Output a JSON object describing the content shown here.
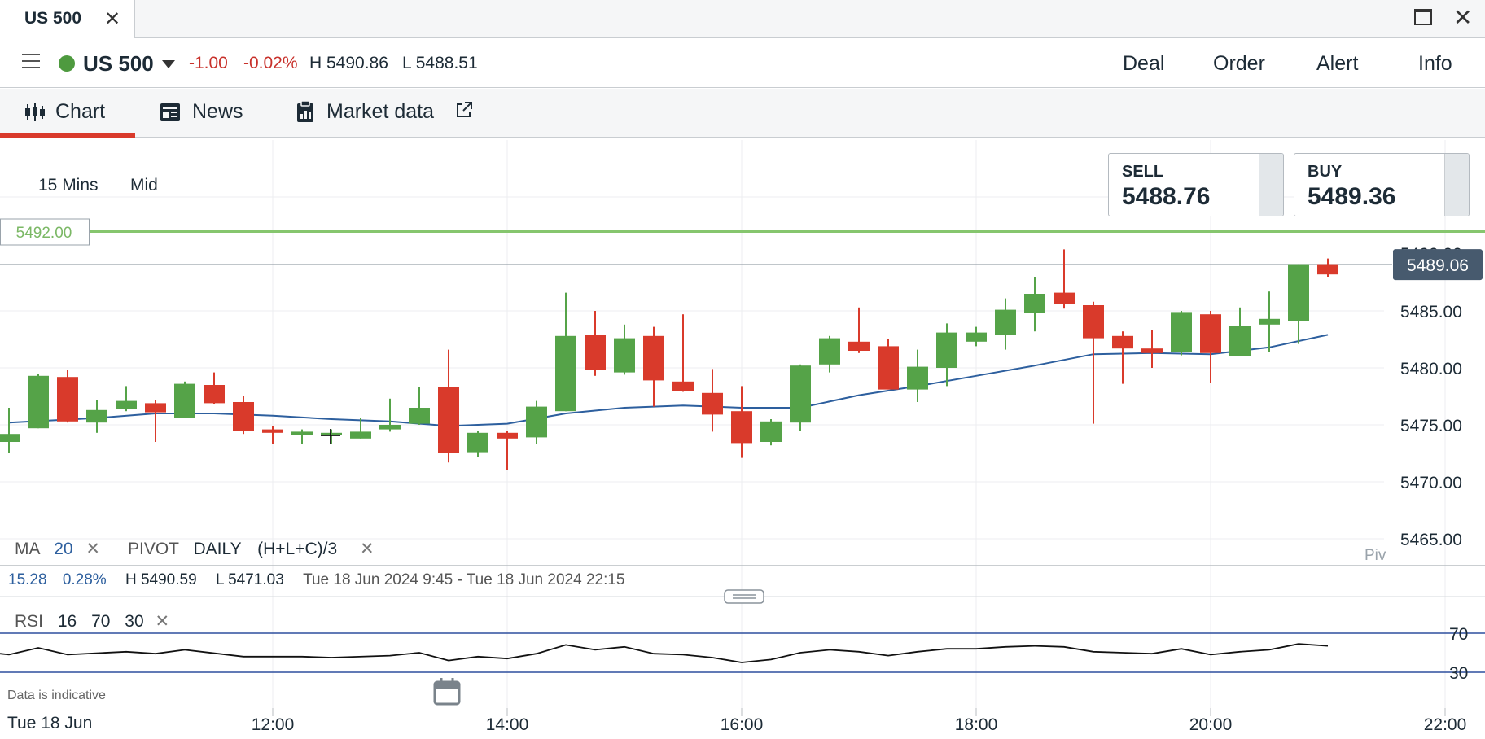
{
  "window": {
    "tab_title": "US 500",
    "close_glyph": "✕",
    "close_window_glyph": "✕",
    "maximize_icon": "maximize-icon"
  },
  "instrument": {
    "name": "US 500",
    "change": "-1.00",
    "change_pct": "-0.02%",
    "high": "H 5490.86",
    "low": "L 5488.51",
    "status_color": "#4e9a3f"
  },
  "top_nav": [
    "Deal",
    "Order",
    "Alert",
    "Info"
  ],
  "tabs": [
    {
      "label": "Chart",
      "icon": "candlestick-icon",
      "active": true
    },
    {
      "label": "News",
      "icon": "news-icon",
      "active": false
    },
    {
      "label": "Market data",
      "icon": "clipboard-chart-icon",
      "active": false
    }
  ],
  "controls": {
    "interval": "15 Mins",
    "price_type": "Mid"
  },
  "sell": {
    "label": "SELL",
    "price": "5488.76"
  },
  "buy": {
    "label": "BUY",
    "price": "5489.36"
  },
  "pivot_line_label": "5492.00",
  "current_price_label": "5489.06",
  "partial_axis_label": "5490.00",
  "piv_label": "Piv",
  "indicators": {
    "ma_label": "MA",
    "ma_period": "20",
    "pivot_label": "PIVOT",
    "pivot_period": "DAILY",
    "pivot_formula": "(H+L+C)/3",
    "remove_glyph": "✕"
  },
  "stats": {
    "change": "15.28",
    "change_pct": "0.28%",
    "high": "H 5490.59",
    "low": "L 5471.03",
    "range": "Tue 18 Jun 2024 9:45 - Tue 18 Jun 2024 22:15"
  },
  "rsi": {
    "label": "RSI",
    "period": "16",
    "upper": "70",
    "lower": "30"
  },
  "footer": {
    "indicative": "Data is indicative",
    "date": "Tue 18 Jun"
  },
  "colors": {
    "up": "#55a348",
    "down": "#d93a2b",
    "ma": "#2d5f9e",
    "pivot": "#86c66e",
    "rsi_band": "#2d4f9e",
    "price_tag": "#475a6e"
  },
  "chart_data": {
    "type": "candlestick",
    "title": "",
    "price_ticks": [
      5465,
      5470,
      5475,
      5480,
      5485
    ],
    "price_range": [
      5462,
      5493
    ],
    "time_ticks": [
      "12:00",
      "14:00",
      "16:00",
      "18:00",
      "20:00",
      "22:00"
    ],
    "time_tick_hours": [
      12,
      14,
      16,
      18,
      20,
      22
    ],
    "pivot": 5492.0,
    "current_price": 5489.06,
    "candles": [
      {
        "t": 9.75,
        "o": 5473.5,
        "h": 5476.5,
        "l": 5472.5,
        "c": 5474.2
      },
      {
        "t": 10.0,
        "o": 5474.7,
        "h": 5479.5,
        "l": 5474.7,
        "c": 5479.3
      },
      {
        "t": 10.25,
        "o": 5479.2,
        "h": 5479.8,
        "l": 5475.2,
        "c": 5475.3
      },
      {
        "t": 10.5,
        "o": 5475.2,
        "h": 5477.2,
        "l": 5474.3,
        "c": 5476.3
      },
      {
        "t": 10.75,
        "o": 5476.4,
        "h": 5478.4,
        "l": 5476.2,
        "c": 5477.1
      },
      {
        "t": 11.0,
        "o": 5476.9,
        "h": 5477.2,
        "l": 5473.5,
        "c": 5476.1
      },
      {
        "t": 11.25,
        "o": 5475.6,
        "h": 5478.8,
        "l": 5475.6,
        "c": 5478.6
      },
      {
        "t": 11.5,
        "o": 5478.5,
        "h": 5479.6,
        "l": 5476.8,
        "c": 5476.9
      },
      {
        "t": 11.75,
        "o": 5477.0,
        "h": 5477.5,
        "l": 5474.2,
        "c": 5474.5
      },
      {
        "t": 12.0,
        "o": 5474.6,
        "h": 5474.9,
        "l": 5473.3,
        "c": 5474.3
      },
      {
        "t": 12.25,
        "o": 5474.1,
        "h": 5474.6,
        "l": 5473.3,
        "c": 5474.4
      },
      {
        "t": 12.5,
        "o": 5474.3,
        "h": 5474.6,
        "l": 5473.3,
        "c": 5474.3
      },
      {
        "t": 12.75,
        "o": 5473.8,
        "h": 5475.6,
        "l": 5473.8,
        "c": 5474.4
      },
      {
        "t": 13.0,
        "o": 5474.6,
        "h": 5477.3,
        "l": 5474.4,
        "c": 5475.0
      },
      {
        "t": 13.25,
        "o": 5475.1,
        "h": 5478.3,
        "l": 5475.0,
        "c": 5476.5
      },
      {
        "t": 13.5,
        "o": 5478.3,
        "h": 5481.6,
        "l": 5471.7,
        "c": 5472.5
      },
      {
        "t": 13.75,
        "o": 5472.6,
        "h": 5474.5,
        "l": 5472.2,
        "c": 5474.3
      },
      {
        "t": 14.0,
        "o": 5474.3,
        "h": 5474.5,
        "l": 5471.0,
        "c": 5473.8
      },
      {
        "t": 14.25,
        "o": 5473.9,
        "h": 5477.1,
        "l": 5473.3,
        "c": 5476.6
      },
      {
        "t": 14.5,
        "o": 5476.2,
        "h": 5486.6,
        "l": 5476.2,
        "c": 5482.8
      },
      {
        "t": 14.75,
        "o": 5482.9,
        "h": 5485.0,
        "l": 5479.3,
        "c": 5479.8
      },
      {
        "t": 15.0,
        "o": 5479.6,
        "h": 5483.8,
        "l": 5479.4,
        "c": 5482.6
      },
      {
        "t": 15.25,
        "o": 5482.8,
        "h": 5483.6,
        "l": 5476.6,
        "c": 5478.9
      },
      {
        "t": 15.5,
        "o": 5478.8,
        "h": 5484.7,
        "l": 5477.9,
        "c": 5478.0
      },
      {
        "t": 15.75,
        "o": 5477.8,
        "h": 5479.9,
        "l": 5474.4,
        "c": 5475.9
      },
      {
        "t": 16.0,
        "o": 5476.2,
        "h": 5478.4,
        "l": 5472.1,
        "c": 5473.4
      },
      {
        "t": 16.25,
        "o": 5473.5,
        "h": 5475.5,
        "l": 5473.2,
        "c": 5475.3
      },
      {
        "t": 16.5,
        "o": 5475.2,
        "h": 5480.3,
        "l": 5474.5,
        "c": 5480.2
      },
      {
        "t": 16.75,
        "o": 5480.3,
        "h": 5482.8,
        "l": 5479.6,
        "c": 5482.6
      },
      {
        "t": 17.0,
        "o": 5482.3,
        "h": 5485.3,
        "l": 5481.3,
        "c": 5481.5
      },
      {
        "t": 17.25,
        "o": 5481.9,
        "h": 5482.5,
        "l": 5478.1,
        "c": 5478.1
      },
      {
        "t": 17.5,
        "o": 5478.1,
        "h": 5481.6,
        "l": 5477.0,
        "c": 5480.1
      },
      {
        "t": 17.75,
        "o": 5480.0,
        "h": 5483.9,
        "l": 5478.4,
        "c": 5483.1
      },
      {
        "t": 18.0,
        "o": 5482.3,
        "h": 5483.6,
        "l": 5481.9,
        "c": 5483.1
      },
      {
        "t": 18.25,
        "o": 5482.9,
        "h": 5486.1,
        "l": 5481.6,
        "c": 5485.1
      },
      {
        "t": 18.5,
        "o": 5484.8,
        "h": 5488.0,
        "l": 5483.2,
        "c": 5486.5
      },
      {
        "t": 18.75,
        "o": 5486.6,
        "h": 5490.4,
        "l": 5485.2,
        "c": 5485.6
      },
      {
        "t": 19.0,
        "o": 5485.5,
        "h": 5485.8,
        "l": 5475.1,
        "c": 5482.6
      },
      {
        "t": 19.25,
        "o": 5482.8,
        "h": 5483.2,
        "l": 5478.6,
        "c": 5481.7
      },
      {
        "t": 19.5,
        "o": 5481.7,
        "h": 5483.3,
        "l": 5480.0,
        "c": 5481.3
      },
      {
        "t": 19.75,
        "o": 5481.4,
        "h": 5485.0,
        "l": 5481.1,
        "c": 5484.9
      },
      {
        "t": 20.0,
        "o": 5484.7,
        "h": 5485.0,
        "l": 5478.7,
        "c": 5481.3
      },
      {
        "t": 20.25,
        "o": 5481.0,
        "h": 5485.3,
        "l": 5481.0,
        "c": 5483.7
      },
      {
        "t": 20.5,
        "o": 5483.8,
        "h": 5486.7,
        "l": 5481.4,
        "c": 5484.3
      },
      {
        "t": 20.75,
        "o": 5484.1,
        "h": 5489.1,
        "l": 5482.1,
        "c": 5489.1
      },
      {
        "t": 21.0,
        "o": 5489.1,
        "h": 5489.6,
        "l": 5488.0,
        "c": 5488.2
      }
    ],
    "ma20": [
      [
        9.75,
        5475.2
      ],
      [
        10.5,
        5475.6
      ],
      [
        11.0,
        5476.0
      ],
      [
        11.5,
        5476.0
      ],
      [
        12.0,
        5475.8
      ],
      [
        12.5,
        5475.5
      ],
      [
        13.0,
        5475.3
      ],
      [
        13.5,
        5474.9
      ],
      [
        14.0,
        5475.1
      ],
      [
        14.5,
        5476.0
      ],
      [
        15.0,
        5476.5
      ],
      [
        15.5,
        5476.7
      ],
      [
        16.0,
        5476.5
      ],
      [
        16.5,
        5476.5
      ],
      [
        17.0,
        5477.6
      ],
      [
        17.5,
        5478.4
      ],
      [
        18.0,
        5479.3
      ],
      [
        18.5,
        5480.2
      ],
      [
        19.0,
        5481.2
      ],
      [
        19.5,
        5481.3
      ],
      [
        20.0,
        5481.2
      ],
      [
        20.5,
        5481.8
      ],
      [
        21.0,
        5482.9
      ]
    ],
    "rsi": {
      "range": [
        0,
        100
      ],
      "bands": [
        70,
        30
      ],
      "values": [
        [
          9.75,
          48
        ],
        [
          10.0,
          55
        ],
        [
          10.25,
          48
        ],
        [
          10.75,
          51
        ],
        [
          11.0,
          49
        ],
        [
          11.25,
          53
        ],
        [
          11.75,
          46
        ],
        [
          12.25,
          46
        ],
        [
          12.5,
          45
        ],
        [
          13.0,
          47
        ],
        [
          13.25,
          50
        ],
        [
          13.5,
          42
        ],
        [
          13.75,
          46
        ],
        [
          14.0,
          44
        ],
        [
          14.25,
          49
        ],
        [
          14.5,
          58
        ],
        [
          14.75,
          53
        ],
        [
          15.0,
          56
        ],
        [
          15.25,
          49
        ],
        [
          15.5,
          48
        ],
        [
          15.75,
          45
        ],
        [
          16.0,
          40
        ],
        [
          16.25,
          43
        ],
        [
          16.5,
          50
        ],
        [
          16.75,
          53
        ],
        [
          17.0,
          51
        ],
        [
          17.25,
          47
        ],
        [
          17.5,
          51
        ],
        [
          17.75,
          54
        ],
        [
          18.0,
          54
        ],
        [
          18.25,
          56
        ],
        [
          18.5,
          57
        ],
        [
          18.75,
          56
        ],
        [
          19.0,
          51
        ],
        [
          19.25,
          50
        ],
        [
          19.5,
          49
        ],
        [
          19.75,
          54
        ],
        [
          20.0,
          48
        ],
        [
          20.25,
          51
        ],
        [
          20.5,
          53
        ],
        [
          20.75,
          59
        ],
        [
          21.0,
          57
        ]
      ]
    }
  }
}
